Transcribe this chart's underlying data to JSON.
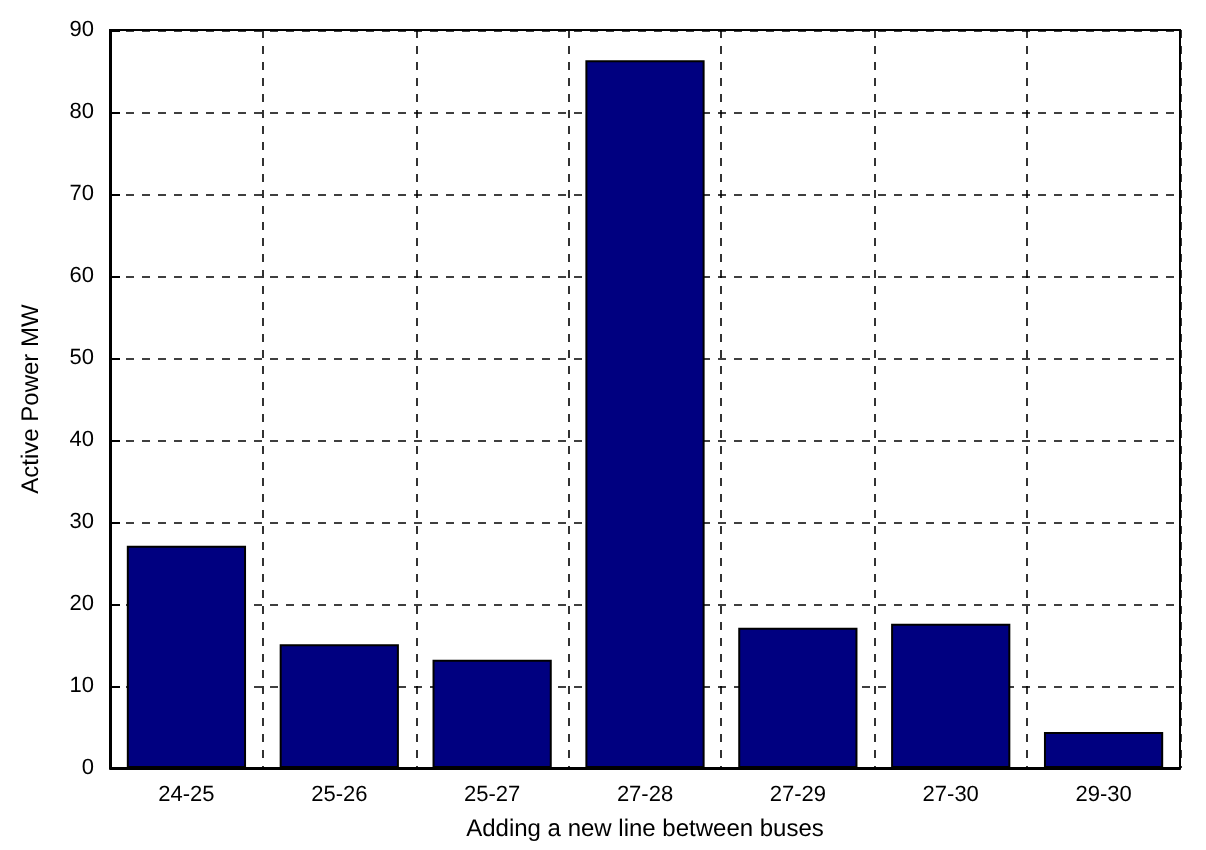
{
  "chart_data": {
    "type": "bar",
    "xlabel": "Adding a new line between buses",
    "ylabel": "Active Power MW",
    "categories": [
      "24-25",
      "25-26",
      "25-27",
      "27-28",
      "27-29",
      "27-30",
      "29-30"
    ],
    "values": [
      27.1,
      15.1,
      13.2,
      86.3,
      17.1,
      17.6,
      4.4
    ],
    "color": "#000080",
    "ylim": [
      0,
      90
    ],
    "yticks": [
      0,
      10,
      20,
      30,
      40,
      50,
      60,
      70,
      80,
      90
    ],
    "grid": true
  }
}
